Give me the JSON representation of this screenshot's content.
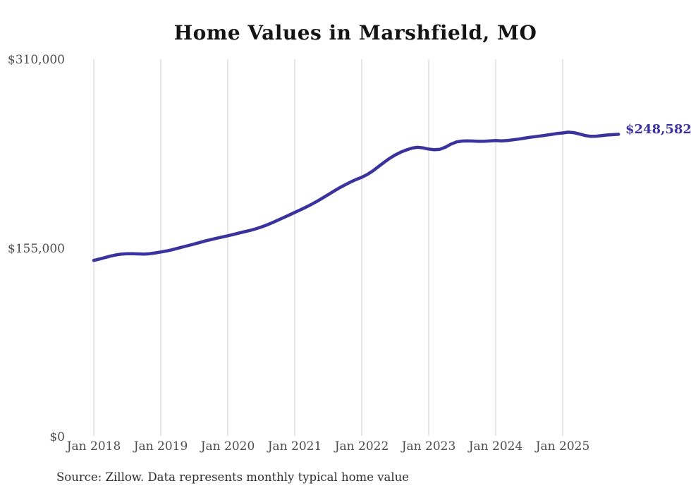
{
  "title": "Home Values in Marshfield, MO",
  "end_label": "$248,582",
  "source_note": "Source: Zillow. Data represents monthly typical home value",
  "colors": {
    "line": "#3a339e",
    "grid": "#cccccc",
    "axis_text": "#4d4d4d",
    "title_text": "#141414",
    "end_label_text": "#3a339e"
  },
  "chart_data": {
    "type": "line",
    "title": "Home Values in Marshfield, MO",
    "xlabel": "",
    "ylabel": "",
    "ylim": [
      0,
      310000
    ],
    "y_tick_values": [
      310000,
      155000,
      0
    ],
    "y_tick_labels": [
      "$310,000",
      "$155,000",
      "$0"
    ],
    "x_tick_labels": [
      "Jan 2018",
      "Jan 2019",
      "Jan 2020",
      "Jan 2021",
      "Jan 2022",
      "Jan 2023",
      "Jan 2024",
      "Jan 2025"
    ],
    "grid": "vertical-only",
    "legend": "none",
    "x_start_month": "2018-01",
    "x_end_month": "2025-11",
    "end_value": 248582,
    "end_value_label": "$248,582",
    "series": [
      {
        "name": "Typical home value (USD, monthly)",
        "monthly_values": [
          144900,
          146000,
          147200,
          148400,
          149400,
          150100,
          150400,
          150400,
          150200,
          150100,
          150400,
          151000,
          151800,
          152600,
          153600,
          154800,
          156000,
          157200,
          158400,
          159600,
          160900,
          162000,
          163100,
          164100,
          165100,
          166200,
          167400,
          168500,
          169500,
          170800,
          172300,
          174000,
          175900,
          178000,
          180100,
          182200,
          184300,
          186400,
          188600,
          191000,
          193500,
          196200,
          199000,
          201800,
          204500,
          207000,
          209300,
          211400,
          213200,
          215500,
          218500,
          222000,
          225500,
          228800,
          231600,
          233900,
          235700,
          237200,
          237900,
          237400,
          236400,
          235900,
          236200,
          238000,
          240500,
          242300,
          243000,
          243200,
          243000,
          242800,
          242900,
          243100,
          243400,
          243100,
          243400,
          244000,
          244600,
          245300,
          246000,
          246600,
          247200,
          247800,
          248500,
          249200,
          249700,
          250300,
          249900,
          248800,
          247600,
          246900,
          247000,
          247500,
          248000,
          248300,
          248582
        ]
      }
    ]
  }
}
